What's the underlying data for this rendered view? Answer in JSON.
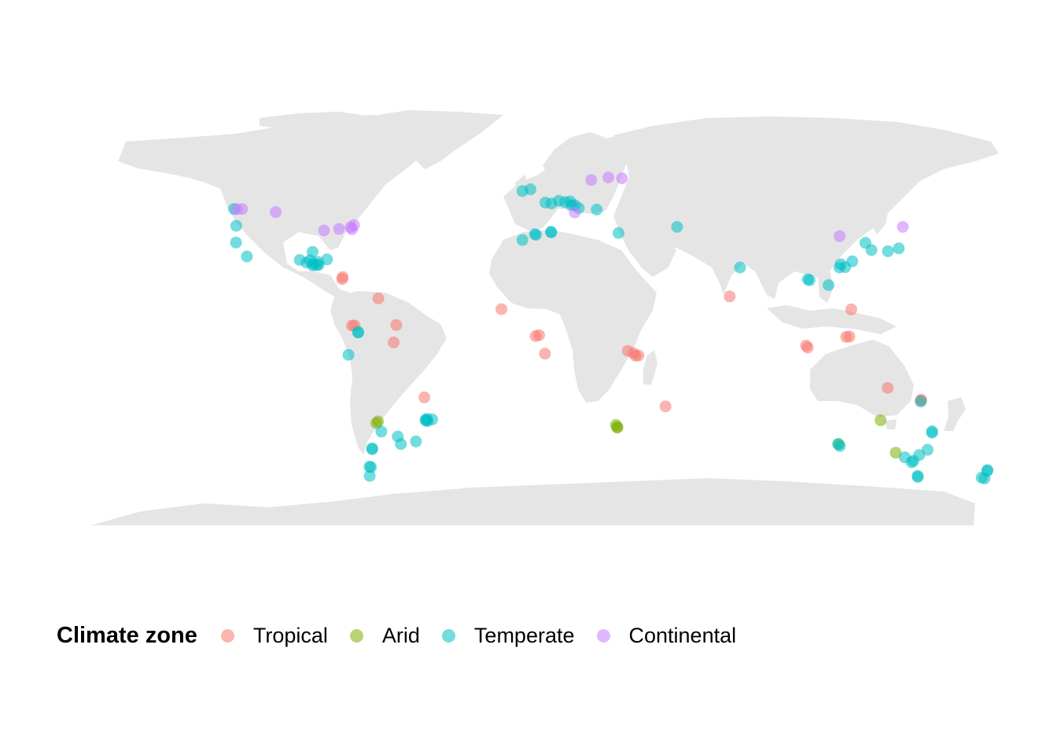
{
  "chart_data": {
    "type": "scatter",
    "projection": "equirectangular world map",
    "legend": {
      "title": "Climate zone",
      "position": "bottom",
      "items": [
        {
          "name": "Tropical",
          "color": "#F8766D"
        },
        {
          "name": "Arid",
          "color": "#7CAE00"
        },
        {
          "name": "Temperate",
          "color": "#00BFC4"
        },
        {
          "name": "Continental",
          "color": "#C77CFF"
        }
      ]
    },
    "land_color": "#e5e5e5",
    "point_alpha": 0.55,
    "series": [
      {
        "name": "Tropical",
        "points": [
          [
            -80.2,
            25.8
          ],
          [
            -80.4,
            25.1
          ],
          [
            -66.1,
            18.4
          ],
          [
            -76.5,
            9.0
          ],
          [
            -75.5,
            9.0
          ],
          [
            -59.0,
            9.2
          ],
          [
            -60.0,
            3.2
          ],
          [
            -47.9,
            -15.8
          ],
          [
            -17.4,
            14.7
          ],
          [
            -3.9,
            5.4
          ],
          [
            -2.5,
            5.7
          ],
          [
            -0.2,
            -0.7
          ],
          [
            32.6,
            0.3
          ],
          [
            34.8,
            -0.5
          ],
          [
            36.8,
            -1.3
          ],
          [
            35.7,
            -1.4
          ],
          [
            47.5,
            -18.9
          ],
          [
            72.9,
            19.1
          ],
          [
            103.8,
            1.4
          ],
          [
            103.1,
            2.1
          ],
          [
            119.0,
            5.1
          ],
          [
            121.0,
            14.6
          ],
          [
            120.3,
            5.2
          ],
          [
            135.4,
            -12.5
          ],
          [
            148.5,
            -16.9
          ],
          [
            148.7,
            -16.6
          ]
        ]
      },
      {
        "name": "Arid",
        "points": [
          [
            -66.9,
            -24.7
          ],
          [
            -66.2,
            -24.1
          ],
          [
            27.9,
            -25.3
          ],
          [
            28.4,
            -26.2
          ],
          [
            28.5,
            -26.1
          ],
          [
            116.0,
            -31.9
          ],
          [
            132.6,
            -23.7
          ],
          [
            138.6,
            -34.9
          ]
        ]
      },
      {
        "name": "Temperate",
        "points": [
          [
            -123.2,
            49.3
          ],
          [
            -122.3,
            43.5
          ],
          [
            -122.4,
            37.7
          ],
          [
            -118.1,
            32.9
          ],
          [
            -97.2,
            31.7
          ],
          [
            -94.5,
            30.8
          ],
          [
            -92.1,
            34.5
          ],
          [
            -93.1,
            31.6
          ],
          [
            -92.1,
            29.8
          ],
          [
            -91.8,
            30.4
          ],
          [
            -90.0,
            31.0
          ],
          [
            -90.5,
            29.9
          ],
          [
            -89.7,
            30.0
          ],
          [
            -86.4,
            31.9
          ],
          [
            -74.1,
            6.8
          ],
          [
            -74.1,
            6.6
          ],
          [
            -77.9,
            -1.1
          ],
          [
            -64.9,
            -27.6
          ],
          [
            -68.5,
            -33.7
          ],
          [
            -68.5,
            -33.4
          ],
          [
            -69.0,
            -39.9
          ],
          [
            -69.5,
            -42.9
          ],
          [
            -69.6,
            -39.7
          ],
          [
            -58.4,
            -29.3
          ],
          [
            -57.2,
            -31.9
          ],
          [
            -51.2,
            -31.0
          ],
          [
            -47.4,
            -23.5
          ],
          [
            -46.6,
            -24.0
          ],
          [
            -46.8,
            -23.2
          ],
          [
            -44.8,
            -23.4
          ],
          [
            -47.3,
            -23.8
          ],
          [
            -9.1,
            38.6
          ],
          [
            -3.7,
            40.4
          ],
          [
            -4.2,
            40.6
          ],
          [
            2.2,
            41.4
          ],
          [
            2.3,
            41.2
          ],
          [
            -9.1,
            55.5
          ],
          [
            -5.9,
            56.1
          ],
          [
            0.0,
            51.5
          ],
          [
            2.4,
            51.2
          ],
          [
            5.3,
            52.1
          ],
          [
            7.8,
            51.7
          ],
          [
            9.8,
            51.9
          ],
          [
            10.3,
            50.6
          ],
          [
            11.6,
            50.6
          ],
          [
            13.2,
            49.6
          ],
          [
            20.3,
            49.1
          ],
          [
            28.9,
            41.0
          ],
          [
            52.1,
            43.1
          ],
          [
            77.0,
            29.1
          ],
          [
            103.8,
            25.0
          ],
          [
            104.5,
            24.7
          ],
          [
            112.0,
            23.0
          ],
          [
            116.3,
            29.1
          ],
          [
            116.8,
            30.2
          ],
          [
            118.6,
            29.2
          ],
          [
            121.4,
            31.2
          ],
          [
            126.6,
            37.6
          ],
          [
            129.0,
            35.1
          ],
          [
            135.5,
            34.7
          ],
          [
            139.8,
            35.7
          ],
          [
            115.8,
            -31.9
          ],
          [
            116.5,
            -32.6
          ],
          [
            142.2,
            -36.5
          ],
          [
            144.9,
            -38.2
          ],
          [
            145.6,
            -37.7
          ],
          [
            147.3,
            -42.9
          ],
          [
            147.3,
            -43.3
          ],
          [
            151.2,
            -33.9
          ],
          [
            153.0,
            -27.5
          ],
          [
            153.0,
            -28.0
          ],
          [
            147.9,
            -35.7
          ],
          [
            172.6,
            -43.5
          ],
          [
            174.8,
            -41.2
          ],
          [
            174.9,
            -40.9
          ],
          [
            173.7,
            -43.8
          ],
          [
            148.5,
            -17.2
          ]
        ]
      },
      {
        "name": "Continental",
        "points": [
          [
            -122.1,
            49.2
          ],
          [
            -120.0,
            49.3
          ],
          [
            -106.7,
            48.2
          ],
          [
            -87.6,
            41.9
          ],
          [
            -81.6,
            42.4
          ],
          [
            -77.0,
            43.0
          ],
          [
            -76.5,
            42.3
          ],
          [
            -75.7,
            43.7
          ],
          [
            18.1,
            59.3
          ],
          [
            24.9,
            60.2
          ],
          [
            30.3,
            59.9
          ],
          [
            116.4,
            39.9
          ],
          [
            141.4,
            43.1
          ],
          [
            11.6,
            48.1
          ]
        ]
      }
    ]
  }
}
